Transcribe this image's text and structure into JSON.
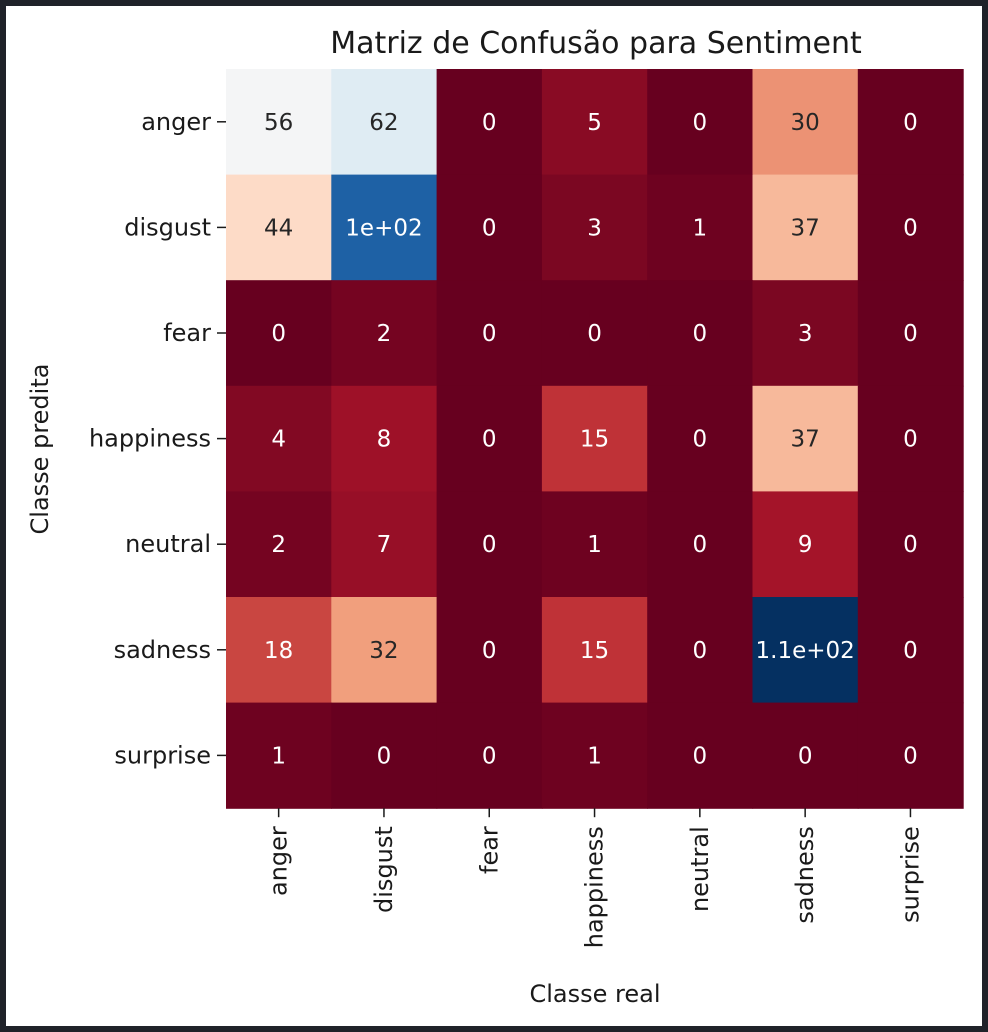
{
  "chart_data": {
    "type": "heatmap",
    "title": "Matriz de Confusão para Sentiment",
    "xlabel": "Classe real",
    "ylabel": "Classe predita",
    "x_categories": [
      "anger",
      "disgust",
      "fear",
      "happiness",
      "neutral",
      "sadness",
      "surprise"
    ],
    "y_categories": [
      "anger",
      "disgust",
      "fear",
      "happiness",
      "neutral",
      "sadness",
      "surprise"
    ],
    "values": [
      [
        56,
        62,
        0,
        5,
        0,
        30,
        0
      ],
      [
        44,
        100,
        0,
        3,
        1,
        37,
        0
      ],
      [
        0,
        2,
        0,
        0,
        0,
        3,
        0
      ],
      [
        4,
        8,
        0,
        15,
        0,
        37,
        0
      ],
      [
        2,
        7,
        0,
        1,
        0,
        9,
        0
      ],
      [
        18,
        32,
        0,
        15,
        0,
        110,
        0
      ],
      [
        1,
        0,
        0,
        1,
        0,
        0,
        0
      ]
    ],
    "annotations": [
      [
        "56",
        "62",
        "0",
        "5",
        "0",
        "30",
        "0"
      ],
      [
        "44",
        "1e+02",
        "0",
        "3",
        "1",
        "37",
        "0"
      ],
      [
        "0",
        "2",
        "0",
        "0",
        "0",
        "3",
        "0"
      ],
      [
        "4",
        "8",
        "0",
        "15",
        "0",
        "37",
        "0"
      ],
      [
        "2",
        "7",
        "0",
        "1",
        "0",
        "9",
        "0"
      ],
      [
        "18",
        "32",
        "0",
        "15",
        "0",
        "1.1e+02",
        "0"
      ],
      [
        "1",
        "0",
        "0",
        "1",
        "0",
        "0",
        "0"
      ]
    ],
    "colormap": "RdBu",
    "colorbar": false,
    "grid": false
  }
}
